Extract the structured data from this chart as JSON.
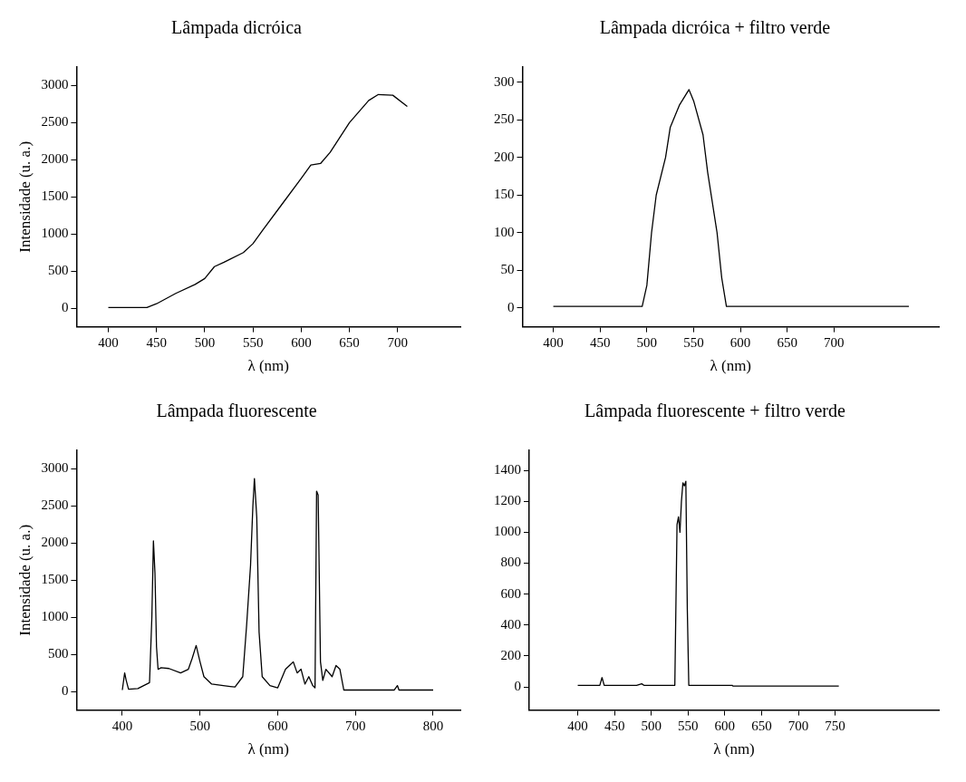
{
  "chart_data": [
    {
      "type": "line",
      "title": "Lâmpada dicróica",
      "xlabel": "λ (nm)",
      "ylabel": "Intensidade (u. a.)",
      "xlim": [
        367,
        765
      ],
      "ylim": [
        -250,
        3250
      ],
      "xticks": [
        400,
        450,
        500,
        550,
        600,
        650,
        700
      ],
      "yticks": [
        0,
        500,
        1000,
        1500,
        2000,
        2500,
        3000
      ],
      "grid": false,
      "legend": false,
      "marker": "none",
      "series": [
        {
          "color": "#000000",
          "x": [
            400,
            440,
            450,
            470,
            490,
            500,
            510,
            520,
            540,
            550,
            560,
            580,
            600,
            610,
            620,
            630,
            650,
            670,
            680,
            695,
            710
          ],
          "values": [
            10,
            10,
            60,
            200,
            320,
            400,
            560,
            620,
            750,
            870,
            1050,
            1400,
            1750,
            1930,
            1950,
            2100,
            2500,
            2800,
            2880,
            2870,
            2720
          ]
        }
      ]
    },
    {
      "type": "line",
      "title": "Lâmpada dicróica + filtro verde",
      "xlabel": "λ (nm)",
      "xlim": [
        367,
        812
      ],
      "ylim": [
        -25,
        320
      ],
      "xticks": [
        400,
        450,
        500,
        550,
        600,
        650,
        700
      ],
      "yticks": [
        0,
        50,
        100,
        150,
        200,
        250,
        300
      ],
      "grid": false,
      "legend": false,
      "marker": "none",
      "series": [
        {
          "color": "#000000",
          "x": [
            400,
            495,
            500,
            505,
            510,
            520,
            525,
            535,
            545,
            550,
            560,
            565,
            575,
            580,
            585,
            780
          ],
          "values": [
            2,
            2,
            30,
            100,
            150,
            200,
            240,
            270,
            290,
            275,
            230,
            180,
            100,
            40,
            2,
            2
          ]
        }
      ]
    },
    {
      "type": "line",
      "title": "Lâmpada fluorescente",
      "xlabel": "λ (nm)",
      "ylabel": "Intensidade (u. a.)",
      "xlim": [
        341,
        835
      ],
      "ylim": [
        -250,
        3250
      ],
      "xticks": [
        400,
        500,
        600,
        700,
        800
      ],
      "yticks": [
        0,
        500,
        1000,
        1500,
        2000,
        2500,
        3000
      ],
      "grid": false,
      "legend": false,
      "marker": "none",
      "series": [
        {
          "color": "#000000",
          "x": [
            400,
            403,
            405,
            408,
            420,
            435,
            438,
            440,
            442,
            444,
            446,
            450,
            460,
            475,
            485,
            490,
            495,
            500,
            505,
            515,
            530,
            545,
            555,
            560,
            565,
            568,
            570,
            573,
            576,
            580,
            590,
            600,
            610,
            615,
            620,
            625,
            630,
            635,
            640,
            645,
            648,
            650,
            652,
            655,
            658,
            662,
            670,
            675,
            680,
            685,
            700,
            750,
            754,
            756,
            760,
            800
          ],
          "values": [
            20,
            250,
            150,
            30,
            40,
            120,
            1000,
            2030,
            1600,
            600,
            300,
            320,
            310,
            250,
            300,
            450,
            620,
            400,
            200,
            100,
            80,
            60,
            200,
            900,
            1700,
            2500,
            2870,
            2350,
            800,
            200,
            80,
            50,
            300,
            350,
            400,
            250,
            300,
            100,
            200,
            80,
            50,
            2700,
            2650,
            400,
            150,
            300,
            200,
            350,
            300,
            20,
            20,
            20,
            80,
            20,
            20,
            20
          ]
        }
      ]
    },
    {
      "type": "line",
      "title": "Lâmpada fluorescente + filtro verde",
      "xlabel": "λ (nm)",
      "xlim": [
        334,
        891
      ],
      "ylim": [
        -150,
        1530
      ],
      "xticks": [
        400,
        450,
        500,
        550,
        600,
        650,
        700,
        750
      ],
      "yticks": [
        0,
        200,
        400,
        600,
        800,
        1000,
        1200,
        1400
      ],
      "grid": false,
      "legend": false,
      "marker": "none",
      "series": [
        {
          "color": "#000000",
          "x": [
            400,
            430,
            433,
            436,
            480,
            487,
            490,
            532,
            535,
            537,
            539,
            541,
            543,
            545,
            547,
            549,
            551,
            555,
            610,
            611,
            755
          ],
          "values": [
            10,
            10,
            60,
            10,
            10,
            20,
            10,
            10,
            1050,
            1100,
            1000,
            1200,
            1320,
            1300,
            1330,
            500,
            10,
            10,
            10,
            5,
            5
          ]
        }
      ]
    }
  ]
}
